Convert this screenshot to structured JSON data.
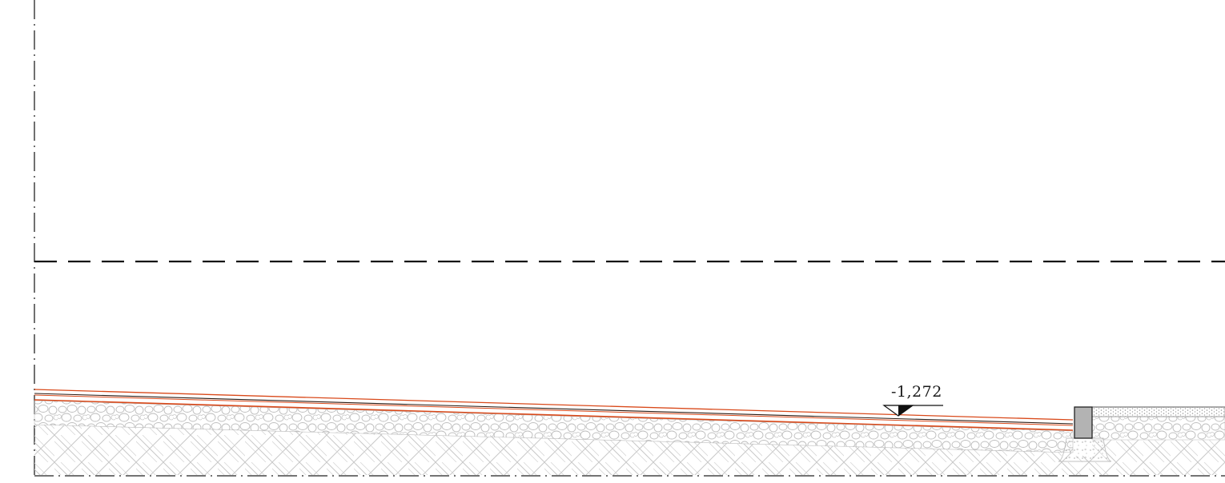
{
  "drawing": {
    "elevation_label": "-1,272"
  },
  "colors": {
    "background": "#ffffff",
    "line_black": "#111111",
    "pavement_red": "#d9491a",
    "pavement_dark": "#2a1a12",
    "gravel_gray": "#b5b5b5",
    "soil_gray": "#c4c4c4",
    "curb_fill": "#b3b3b3"
  },
  "icons": {
    "level_marker": "elevation-triangle-icon"
  }
}
